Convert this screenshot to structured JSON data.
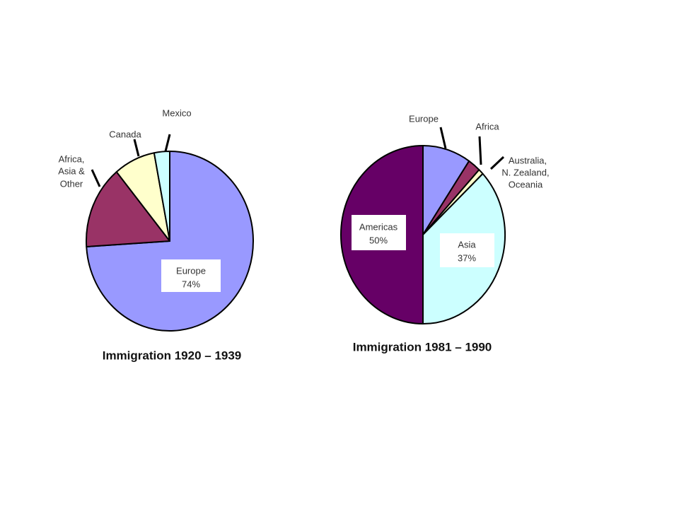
{
  "chart_data": [
    {
      "type": "pie",
      "title": "Immigration 1920 – 1939",
      "slices": [
        {
          "label": "Europe",
          "value": 74,
          "value_label": "74%",
          "color": "#9999ff"
        },
        {
          "label": "Africa, Asia & Other",
          "value": 15,
          "color": "#993366"
        },
        {
          "label": "Canada",
          "value": 8,
          "color": "#ffffcc"
        },
        {
          "label": "Mexico",
          "value": 3,
          "color": "#ccffff"
        }
      ]
    },
    {
      "type": "pie",
      "title": "Immigration 1981 – 1990",
      "slices": [
        {
          "label": "Europe",
          "value": 9.5,
          "color": "#9999ff"
        },
        {
          "label": "Africa",
          "value": 2.5,
          "color": "#993366"
        },
        {
          "label": "Australia, N. Zealand, Oceania",
          "value": 1,
          "color": "#ffffcc"
        },
        {
          "label": "Asia",
          "value": 37,
          "value_label": "37%",
          "color": "#ccffff"
        },
        {
          "label": "Americas",
          "value": 50,
          "value_label": "50%",
          "color": "#660066"
        }
      ]
    }
  ]
}
